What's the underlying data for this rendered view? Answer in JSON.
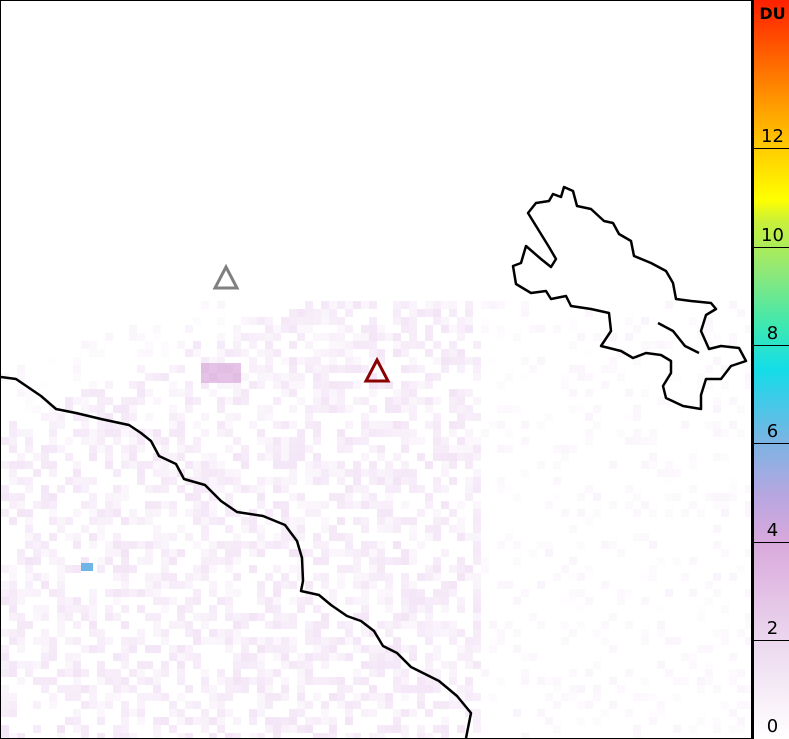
{
  "colorbar": {
    "unit": "DU",
    "ticks": [
      "0",
      "2",
      "4",
      "6",
      "8",
      "10",
      "12"
    ],
    "range": [
      0,
      15
    ]
  },
  "markers": [
    {
      "name": "gray-triangle",
      "color": "#808080"
    },
    {
      "name": "red-triangle",
      "color": "#8b0000"
    }
  ],
  "colors": {
    "coastline": "#000000",
    "low_values": "#e8cbee",
    "high_values": "#ff2000"
  }
}
